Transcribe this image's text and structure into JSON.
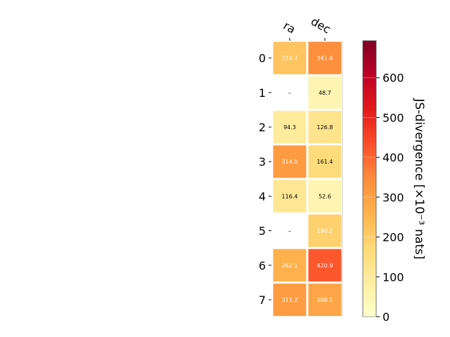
{
  "chart_data": {
    "type": "heatmap",
    "columns": [
      "ra",
      "dec"
    ],
    "rows": [
      "0",
      "1",
      "2",
      "3",
      "4",
      "5",
      "6",
      "7"
    ],
    "values": [
      [
        219.7,
        341.4
      ],
      [
        null,
        48.7
      ],
      [
        94.3,
        126.8
      ],
      [
        314.0,
        161.4
      ],
      [
        116.4,
        52.6
      ],
      [
        null,
        190.2
      ],
      [
        262.1,
        420.9
      ],
      [
        311.2,
        288.1
      ]
    ],
    "cell_labels": [
      [
        "219.7",
        "341.4"
      ],
      [
        "–",
        "48.7"
      ],
      [
        "94.3",
        "126.8"
      ],
      [
        "314.0",
        "161.4"
      ],
      [
        "116.4",
        "52.6"
      ],
      [
        "–",
        "190.2"
      ],
      [
        "262.1",
        "420.9"
      ],
      [
        "311.2",
        "288.1"
      ]
    ],
    "colorbar": {
      "label": "JS-divergence [×10⁻³ nats]",
      "range": [
        0,
        693
      ],
      "ticks": [
        0,
        100,
        200,
        300,
        400,
        500,
        600
      ],
      "tick_labels": [
        "0",
        "100",
        "200",
        "300",
        "400",
        "500",
        "600"
      ],
      "colormap": "YlOrRd"
    }
  }
}
